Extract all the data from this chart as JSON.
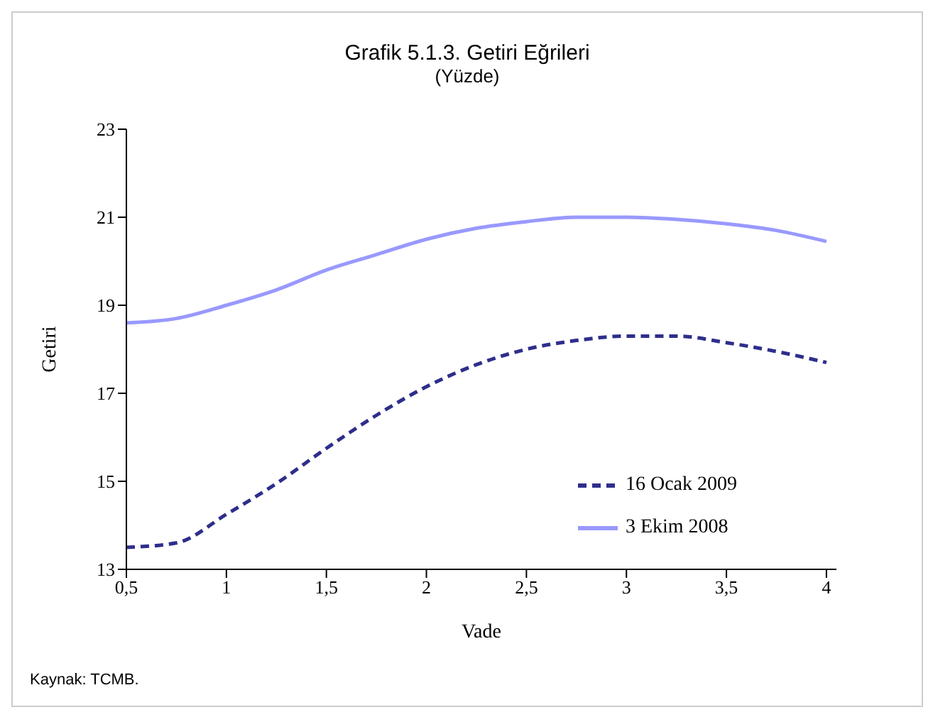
{
  "chart_data": {
    "type": "line",
    "title": "Grafik  5.1.3. Getiri Eğrileri",
    "subtitle": "(Yüzde)",
    "xlabel": "Vade",
    "ylabel": "Getiri",
    "x": [
      0.5,
      0.75,
      1,
      1.25,
      1.5,
      1.75,
      2,
      2.25,
      2.5,
      2.75,
      3,
      3.25,
      3.5,
      3.75,
      4
    ],
    "series": [
      {
        "name": "16 Ocak 2009",
        "color": "#2e2e8c",
        "line_style": "dashed",
        "values": [
          13.5,
          13.6,
          14.25,
          14.95,
          15.75,
          16.5,
          17.15,
          17.65,
          18.0,
          18.2,
          18.3,
          18.3,
          18.15,
          17.95,
          17.7
        ]
      },
      {
        "name": "3 Ekim 2008",
        "color": "#9999ff",
        "line_style": "solid",
        "values": [
          18.6,
          18.7,
          19.0,
          19.35,
          19.8,
          20.15,
          20.5,
          20.75,
          20.9,
          21.0,
          21.0,
          20.95,
          20.85,
          20.7,
          20.45
        ]
      }
    ],
    "xlim": [
      0.5,
      4.05
    ],
    "xticks": [
      {
        "value": 0.5,
        "label": "0,5"
      },
      1,
      {
        "value": 1.5,
        "label": "1,5"
      },
      2,
      {
        "value": 2.5,
        "label": "2,5"
      },
      3,
      {
        "value": 3.5,
        "label": "3,5"
      },
      4
    ],
    "ylim": [
      13,
      23
    ],
    "yticks": [
      13,
      15,
      17,
      19,
      21,
      23
    ],
    "grid": false,
    "legend": "bottom right",
    "marker": "none",
    "annotations": [
      "Kaynak: TCMB."
    ]
  }
}
